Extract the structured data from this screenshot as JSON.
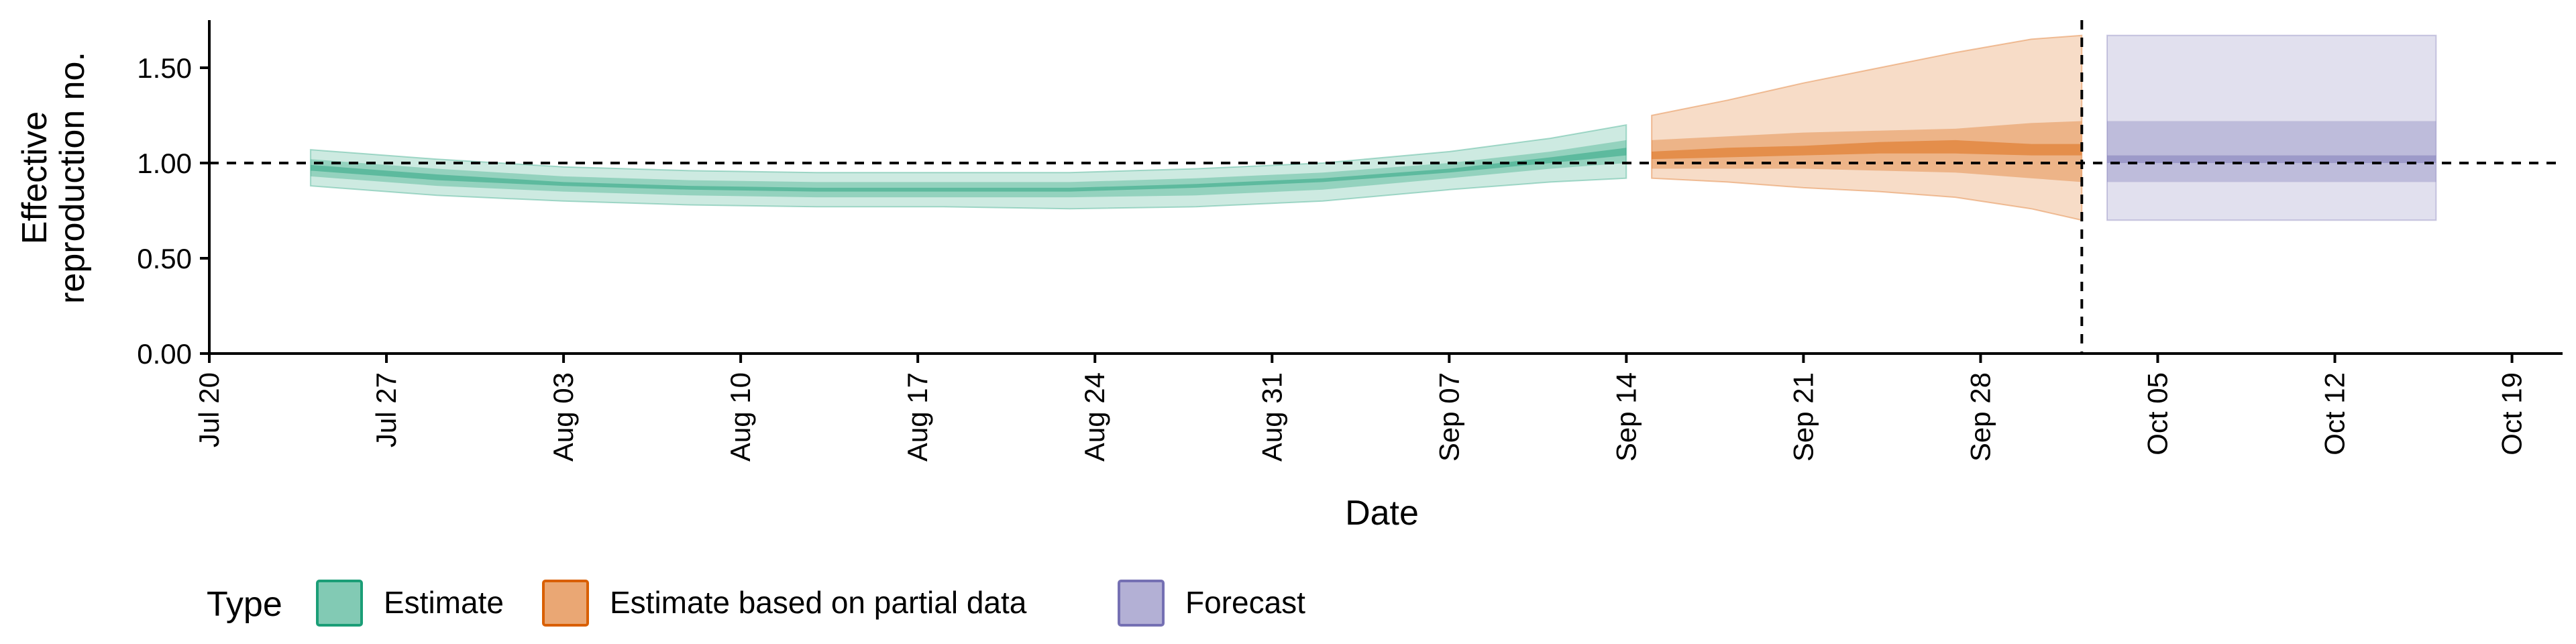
{
  "chart_data": {
    "type": "area",
    "title": "",
    "xlabel": "Date",
    "ylabel_line1": "Effective",
    "ylabel_line2": "reproduction no.",
    "ylim": [
      0,
      1.75
    ],
    "xlim": [
      "2020-07-20",
      "2020-10-21"
    ],
    "y_ticks": [
      "0.00",
      "0.50",
      "1.00",
      "1.50"
    ],
    "y_tick_values": [
      0,
      0.5,
      1.0,
      1.5
    ],
    "x_ticks": [
      "Jul 20",
      "Jul 27",
      "Aug 03",
      "Aug 10",
      "Aug 17",
      "Aug 24",
      "Aug 31",
      "Sep 07",
      "Sep 14",
      "Sep 21",
      "Sep 28",
      "Oct 05",
      "Oct 12",
      "Oct 19"
    ],
    "x_tick_dates": [
      "2020-07-20",
      "2020-07-27",
      "2020-08-03",
      "2020-08-10",
      "2020-08-17",
      "2020-08-24",
      "2020-08-31",
      "2020-09-07",
      "2020-09-14",
      "2020-09-21",
      "2020-09-28",
      "2020-10-05",
      "2020-10-12",
      "2020-10-19"
    ],
    "reference_line_y": 1.0,
    "forecast_date": "2020-10-02",
    "grid": false,
    "legend_position": "bottom",
    "legend_title": "Type",
    "series": [
      {
        "name": "Estimate",
        "fill": "#1b9e77",
        "stroke": "#1b9e77",
        "bands": [
          {
            "dates": [
              "2020-07-24",
              "2020-07-29",
              "2020-08-03",
              "2020-08-08",
              "2020-08-13",
              "2020-08-18",
              "2020-08-23",
              "2020-08-28",
              "2020-09-02",
              "2020-09-07",
              "2020-09-11",
              "2020-09-14"
            ],
            "lower": [
              0.88,
              0.83,
              0.8,
              0.78,
              0.77,
              0.77,
              0.76,
              0.77,
              0.8,
              0.86,
              0.9,
              0.92
            ],
            "upper": [
              1.07,
              1.02,
              0.98,
              0.96,
              0.95,
              0.95,
              0.95,
              0.97,
              1.0,
              1.06,
              1.13,
              1.2
            ]
          },
          {
            "dates": [
              "2020-07-24",
              "2020-07-29",
              "2020-08-03",
              "2020-08-08",
              "2020-08-13",
              "2020-08-18",
              "2020-08-23",
              "2020-08-28",
              "2020-09-02",
              "2020-09-07",
              "2020-09-11",
              "2020-09-14"
            ],
            "lower": [
              0.93,
              0.88,
              0.85,
              0.83,
              0.82,
              0.82,
              0.82,
              0.83,
              0.86,
              0.92,
              0.97,
              1.0
            ],
            "upper": [
              1.02,
              0.97,
              0.93,
              0.91,
              0.9,
              0.9,
              0.9,
              0.92,
              0.95,
              1.0,
              1.06,
              1.12
            ]
          },
          {
            "dates": [
              "2020-07-24",
              "2020-07-29",
              "2020-08-03",
              "2020-08-08",
              "2020-08-13",
              "2020-08-18",
              "2020-08-23",
              "2020-08-28",
              "2020-09-02",
              "2020-09-07",
              "2020-09-11",
              "2020-09-14"
            ],
            "lower": [
              0.96,
              0.91,
              0.88,
              0.86,
              0.85,
              0.85,
              0.85,
              0.87,
              0.9,
              0.95,
              1.0,
              1.04
            ],
            "upper": [
              0.99,
              0.94,
              0.9,
              0.88,
              0.87,
              0.87,
              0.87,
              0.89,
              0.92,
              0.97,
              1.03,
              1.08
            ]
          }
        ]
      },
      {
        "name": "Estimate based on partial data",
        "fill": "#d95f02",
        "stroke": "#d95f02",
        "bands": [
          {
            "dates": [
              "2020-09-15",
              "2020-09-18",
              "2020-09-21",
              "2020-09-24",
              "2020-09-27",
              "2020-09-30",
              "2020-10-02"
            ],
            "lower": [
              0.92,
              0.9,
              0.87,
              0.85,
              0.82,
              0.76,
              0.7
            ],
            "upper": [
              1.25,
              1.33,
              1.42,
              1.5,
              1.58,
              1.65,
              1.67
            ]
          },
          {
            "dates": [
              "2020-09-15",
              "2020-09-18",
              "2020-09-21",
              "2020-09-24",
              "2020-09-27",
              "2020-09-30",
              "2020-10-02"
            ],
            "lower": [
              0.97,
              0.97,
              0.97,
              0.96,
              0.95,
              0.92,
              0.9
            ],
            "upper": [
              1.12,
              1.14,
              1.16,
              1.17,
              1.18,
              1.21,
              1.22
            ]
          },
          {
            "dates": [
              "2020-09-15",
              "2020-09-18",
              "2020-09-21",
              "2020-09-24",
              "2020-09-27",
              "2020-09-30",
              "2020-10-02"
            ],
            "lower": [
              1.02,
              1.03,
              1.04,
              1.05,
              1.05,
              1.04,
              1.04
            ],
            "upper": [
              1.06,
              1.08,
              1.09,
              1.11,
              1.12,
              1.1,
              1.1
            ]
          }
        ]
      },
      {
        "name": "Forecast",
        "fill": "#7570b3",
        "stroke": "#7570b3",
        "bands": [
          {
            "dates": [
              "2020-10-03",
              "2020-10-16"
            ],
            "lower": [
              0.7,
              0.7
            ],
            "upper": [
              1.67,
              1.67
            ]
          },
          {
            "dates": [
              "2020-10-03",
              "2020-10-16"
            ],
            "lower": [
              0.9,
              0.9
            ],
            "upper": [
              1.22,
              1.22
            ]
          },
          {
            "dates": [
              "2020-10-03",
              "2020-10-16"
            ],
            "lower": [
              1.0,
              1.0
            ],
            "upper": [
              1.04,
              1.04
            ]
          }
        ]
      }
    ]
  }
}
